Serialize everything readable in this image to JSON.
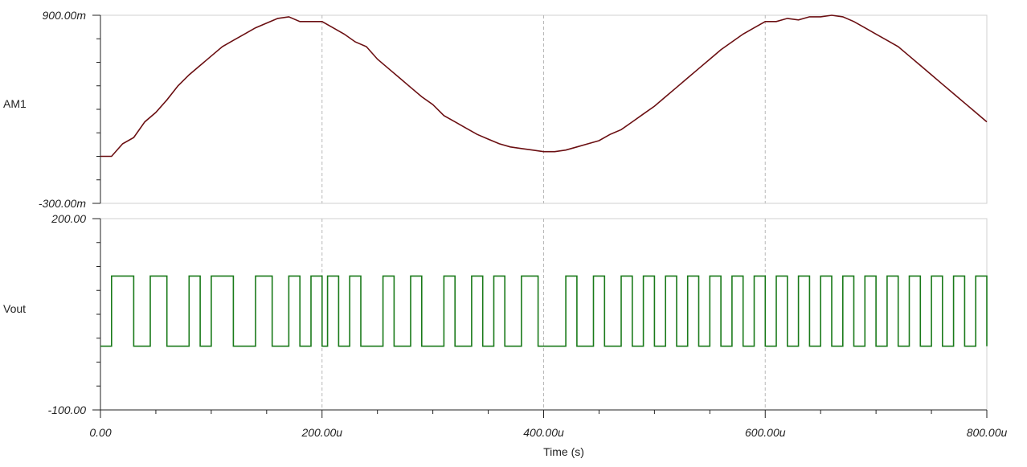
{
  "chart_data": [
    {
      "type": "line",
      "id": "am1",
      "ylabel": "AM1",
      "ylim": [
        -0.3,
        0.9
      ],
      "y_tick_labels": [
        "900.00m",
        "-300.00m"
      ],
      "xlim": [
        0,
        800
      ],
      "grid": "vertical dashed at 200, 400, 600",
      "color": "#6b0f12",
      "series": [
        {
          "x": [
            0,
            10,
            20,
            30,
            40,
            50,
            60,
            70,
            80,
            90,
            100,
            110,
            120,
            130,
            140,
            150,
            160,
            170,
            180,
            190,
            200,
            210,
            220,
            230,
            240,
            250,
            260,
            270,
            280,
            290,
            300,
            310,
            320,
            330,
            340,
            350,
            360,
            370,
            380,
            390,
            400,
            410,
            420,
            430,
            440,
            450,
            460,
            470,
            480,
            490,
            500,
            510,
            520,
            530,
            540,
            550,
            560,
            570,
            580,
            590,
            600,
            610,
            620,
            630,
            640,
            650,
            660,
            670,
            680,
            690,
            700,
            710,
            720,
            730,
            740,
            750,
            760,
            770,
            780,
            790,
            800
          ],
          "y": [
            0.0,
            0.0,
            0.08,
            0.12,
            0.22,
            0.28,
            0.36,
            0.45,
            0.52,
            0.58,
            0.64,
            0.7,
            0.74,
            0.78,
            0.82,
            0.85,
            0.88,
            0.89,
            0.86,
            0.86,
            0.86,
            0.82,
            0.78,
            0.73,
            0.7,
            0.62,
            0.56,
            0.5,
            0.44,
            0.38,
            0.33,
            0.26,
            0.22,
            0.18,
            0.14,
            0.11,
            0.08,
            0.06,
            0.05,
            0.04,
            0.03,
            0.03,
            0.04,
            0.06,
            0.08,
            0.1,
            0.14,
            0.17,
            0.22,
            0.27,
            0.32,
            0.38,
            0.44,
            0.5,
            0.56,
            0.62,
            0.68,
            0.73,
            0.78,
            0.82,
            0.86,
            0.86,
            0.88,
            0.87,
            0.89,
            0.89,
            0.9,
            0.89,
            0.86,
            0.82,
            0.78,
            0.74,
            0.7,
            0.64,
            0.58,
            0.52,
            0.46,
            0.4,
            0.34,
            0.28,
            0.22
          ]
        }
      ]
    },
    {
      "type": "line",
      "id": "vout",
      "ylabel": "Vout",
      "ylim": [
        -100,
        200
      ],
      "y_tick_labels": [
        "200.00",
        "-100.00"
      ],
      "xlim": [
        0,
        800
      ],
      "grid": "vertical dashed at 200, 400, 600",
      "color": "#1a7a1a",
      "series": [
        {
          "levels": {
            "high": 110,
            "low": 0
          },
          "x_pulses": [
            [
              10,
              30
            ],
            [
              45,
              60
            ],
            [
              80,
              90
            ],
            [
              100,
              120
            ],
            [
              140,
              155
            ],
            [
              170,
              180
            ],
            [
              190,
              200
            ],
            [
              205,
              215
            ],
            [
              225,
              235
            ],
            [
              255,
              265
            ],
            [
              280,
              290
            ],
            [
              310,
              320
            ],
            [
              335,
              345
            ],
            [
              355,
              365
            ],
            [
              380,
              395
            ],
            [
              420,
              430
            ],
            [
              445,
              455
            ],
            [
              470,
              480
            ],
            [
              490,
              500
            ],
            [
              510,
              520
            ],
            [
              530,
              540
            ],
            [
              550,
              560
            ],
            [
              570,
              580
            ],
            [
              590,
              600
            ],
            [
              610,
              620
            ],
            [
              630,
              640
            ],
            [
              650,
              660
            ],
            [
              670,
              680
            ],
            [
              690,
              700
            ],
            [
              710,
              720
            ],
            [
              730,
              740
            ],
            [
              750,
              760
            ],
            [
              770,
              780
            ],
            [
              790,
              800
            ]
          ]
        }
      ]
    }
  ],
  "x_axis": {
    "label": "Time (s)",
    "tick_values": [
      0,
      200,
      400,
      600,
      800
    ],
    "tick_labels": [
      "0.00",
      "200.00u",
      "400.00u",
      "600.00u",
      "800.00u"
    ]
  }
}
